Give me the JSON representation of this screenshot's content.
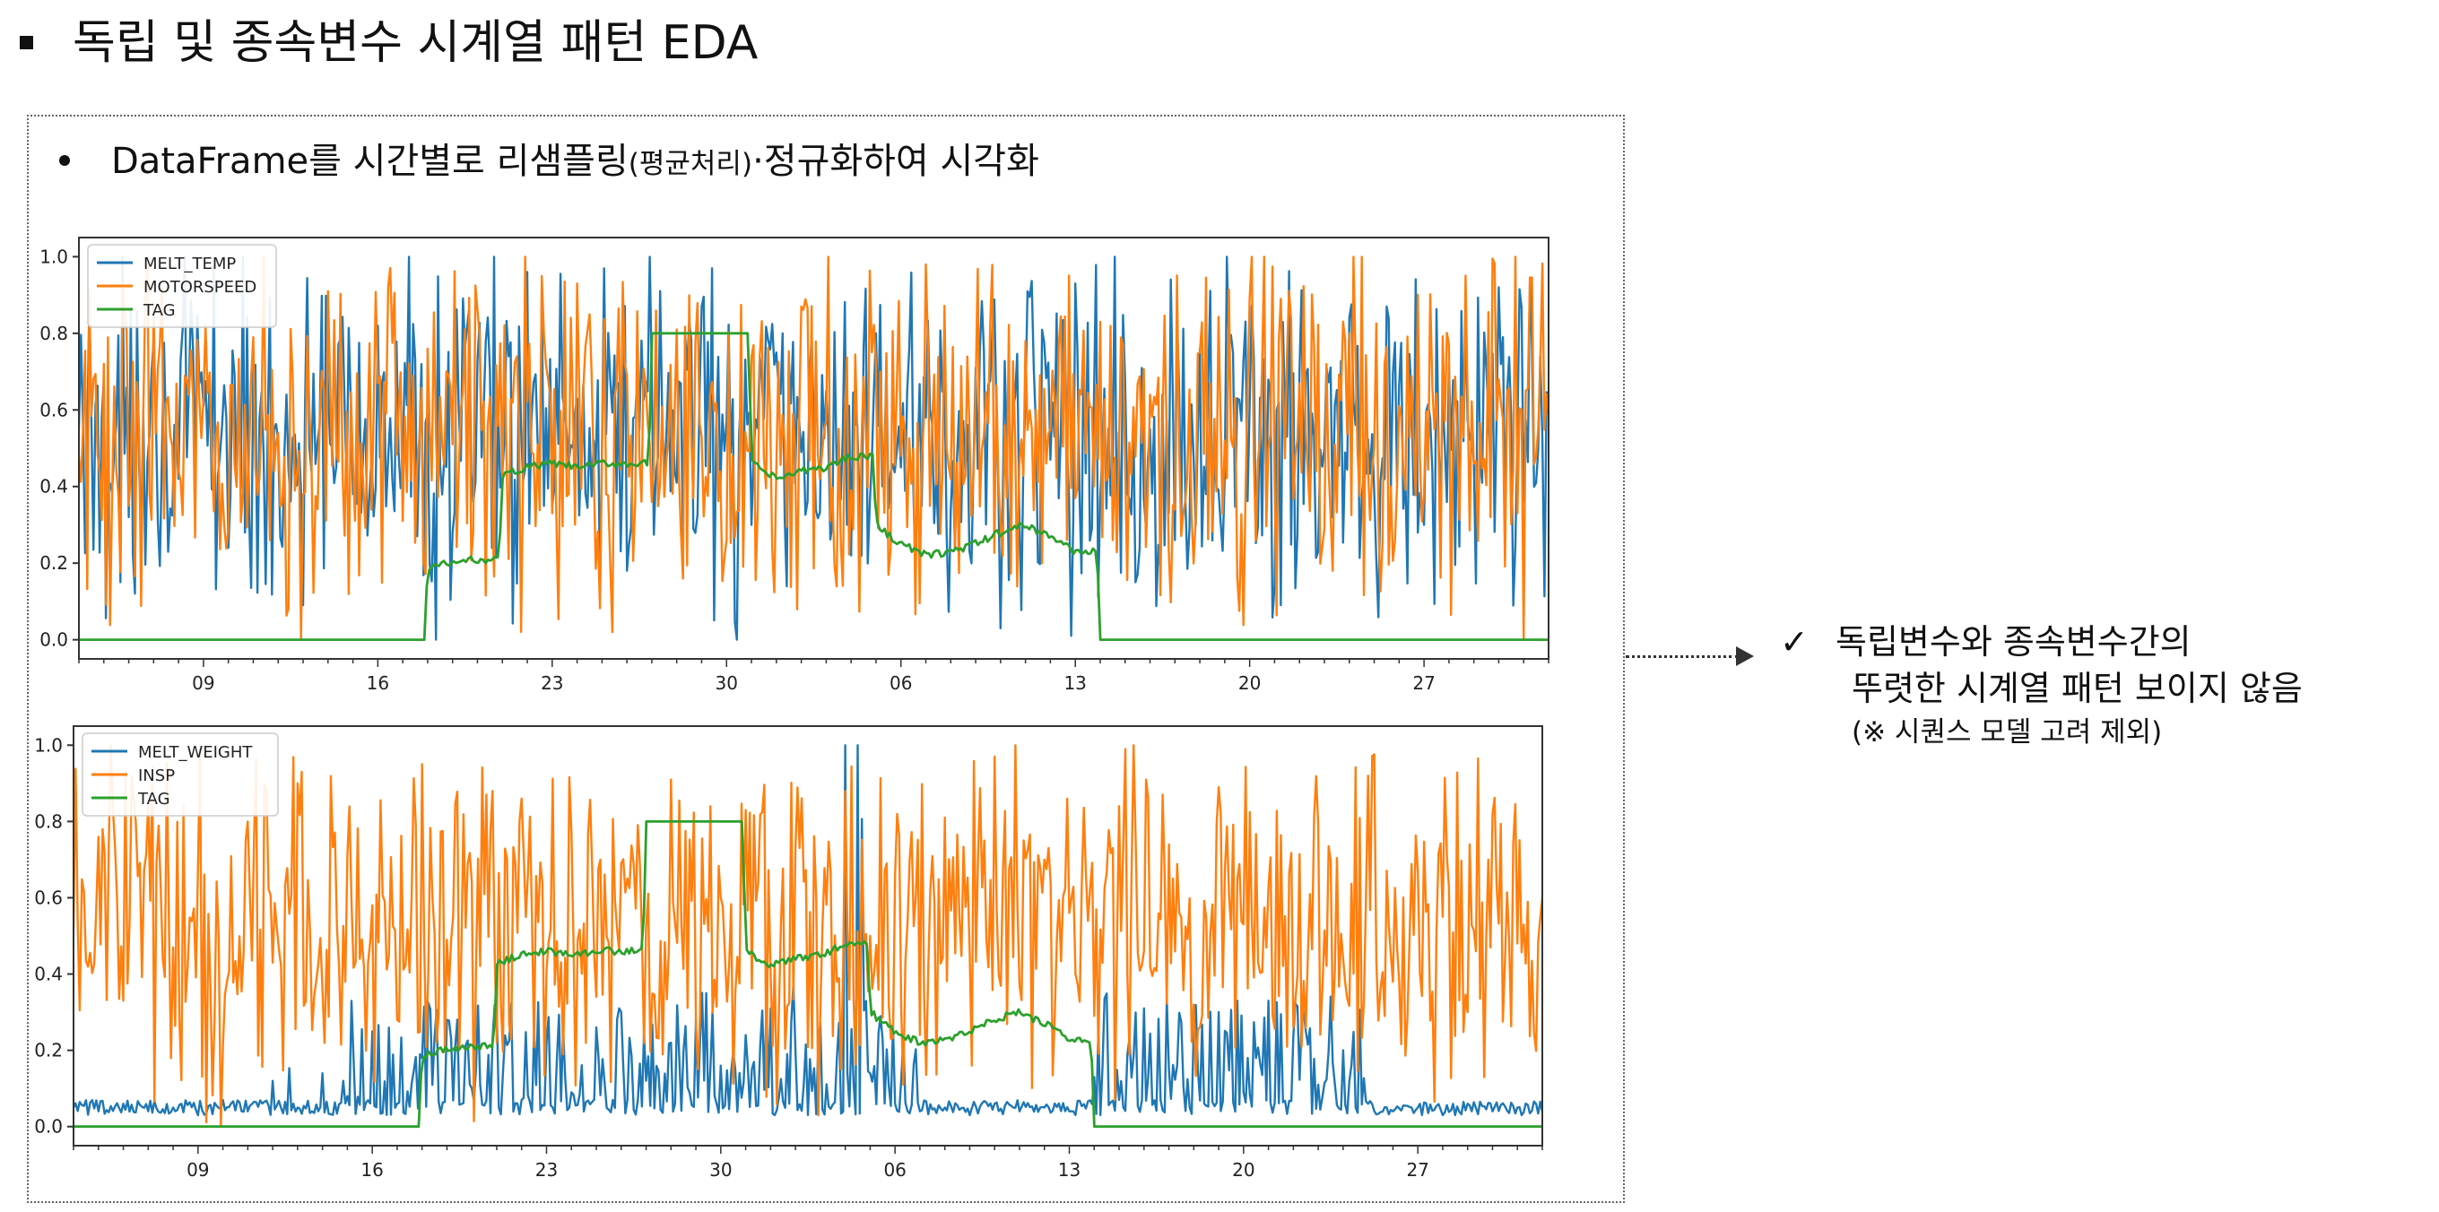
{
  "title": "독립 및 종속변수 시계열 패턴 EDA",
  "subtitle": {
    "main": "DataFrame를 시간별로 리샘플링",
    "paren": "(평균처리)",
    "tail": "·정규화하여 시각화"
  },
  "conclusion": {
    "check": "✓",
    "line1": "독립변수와 종속변수간의",
    "line2": "뚜렷한 시계열 패턴 보이지 않음",
    "line3": "(※ 시퀀스 모델 고려 제외)"
  },
  "colors": {
    "blue": "#1f77b4",
    "orange": "#ff7f0e",
    "green": "#2ca02c"
  },
  "chart_data": [
    {
      "type": "line",
      "title": "",
      "xlabel": "",
      "ylabel": "",
      "ylim": [
        -0.05,
        1.05
      ],
      "xlim": [
        0,
        59
      ],
      "x_ticks": [
        {
          "x": 5,
          "label": "09"
        },
        {
          "x": 12,
          "label": "16"
        },
        {
          "x": 19,
          "label": "23"
        },
        {
          "x": 26,
          "label": "30"
        },
        {
          "x": 33,
          "label": "06"
        },
        {
          "x": 40,
          "label": "13"
        },
        {
          "x": 47,
          "label": "20"
        },
        {
          "x": 54,
          "label": "27"
        }
      ],
      "y_ticks": [
        0.0,
        0.2,
        0.4,
        0.6,
        0.8,
        1.0
      ],
      "legend": "top-left",
      "grid": false,
      "series": [
        {
          "name": "MELT_TEMP",
          "color": "#1f77b4",
          "level": "mid",
          "values": [
            0.55,
            0.68,
            0.32,
            0.78,
            0.42,
            0.61,
            0.24,
            0.71,
            0.52,
            0.09,
            0.66,
            0.38,
            0.82,
            0.47,
            0.59,
            0.28,
            0.73,
            0.44,
            0.96,
            0.35,
            0.63,
            0.51,
            0.18,
            0.69,
            0.41,
            0.87,
            0.57,
            0.3,
            0.75,
            0.49,
            0.65,
            0.22,
            0.8,
            0.45,
            0.58,
            0.34,
            0.71,
            0.03,
            0.62,
            0.47,
            0.93,
            0.37,
            0.68,
            0.55,
            0.26,
            0.76,
            0.43,
            0.61,
            0.14,
            0.7,
            0.5,
            0.84,
            0.39,
            0.66,
            0.3,
            0.72,
            0.46,
            0.92,
            0.36,
            0.64
          ]
        },
        {
          "name": "MOTORSPEED",
          "color": "#ff7f0e",
          "level": "mid",
          "values": [
            0.48,
            0.72,
            0.35,
            0.88,
            0.44,
            0.63,
            0.29,
            0.79,
            0.54,
            0.38,
            0.91,
            0.46,
            0.67,
            0.31,
            0.76,
            0.51,
            0.86,
            0.41,
            0.62,
            0.33,
            0.93,
            0.49,
            0.69,
            0.36,
            0.81,
            0.53,
            0.26,
            0.74,
            0.45,
            0.87,
            0.57,
            0.39,
            0.72,
            0.48,
            0.98,
            0.42,
            0.66,
            0.31,
            0.78,
            0.55,
            0.37,
            0.83,
            0.47,
            0.64,
            0.34,
            0.75,
            0.52,
            0.89,
            0.43,
            0.67,
            0.29,
            0.8,
            0.5,
            0.61,
            0.38,
            0.77,
            0.46,
            0.68,
            0.0,
            0.59
          ]
        },
        {
          "name": "TAG",
          "color": "#2ca02c",
          "values": [
            0,
            0,
            0,
            0,
            0,
            0,
            0,
            0,
            0,
            0,
            0,
            0,
            0,
            0,
            0.19,
            0.2,
            0.21,
            0.43,
            0.45,
            0.46,
            0.45,
            0.46,
            0.46,
            0.8,
            0.8,
            0.8,
            0.8,
            0.46,
            0.42,
            0.44,
            0.45,
            0.48,
            0.3,
            0.25,
            0.22,
            0.23,
            0.25,
            0.28,
            0.3,
            0.27,
            0.23,
            0,
            0,
            0,
            0,
            0,
            0,
            0,
            0,
            0,
            0,
            0,
            0,
            0,
            0,
            0,
            0,
            0,
            0,
            0
          ]
        }
      ]
    },
    {
      "type": "line",
      "title": "",
      "xlabel": "",
      "ylabel": "",
      "ylim": [
        -0.05,
        1.05
      ],
      "xlim": [
        0,
        59
      ],
      "x_ticks": [
        {
          "x": 5,
          "label": "09"
        },
        {
          "x": 12,
          "label": "16"
        },
        {
          "x": 19,
          "label": "23"
        },
        {
          "x": 26,
          "label": "30"
        },
        {
          "x": 33,
          "label": "06"
        },
        {
          "x": 40,
          "label": "13"
        },
        {
          "x": 47,
          "label": "20"
        },
        {
          "x": 54,
          "label": "27"
        }
      ],
      "y_ticks": [
        0.0,
        0.2,
        0.4,
        0.6,
        0.8,
        1.0
      ],
      "legend": "top-left",
      "grid": false,
      "series": [
        {
          "name": "MELT_WEIGHT",
          "color": "#1f77b4",
          "level": "low",
          "values": [
            0.05,
            0.04,
            0.06,
            0.04,
            0.05,
            0.03,
            0.07,
            0.04,
            0.12,
            0.05,
            0.14,
            0.08,
            0.25,
            0.06,
            0.18,
            0.28,
            0.1,
            0.31,
            0.07,
            0.22,
            0.09,
            0.26,
            0.3,
            0.12,
            0.22,
            0.28,
            0.16,
            0.24,
            0.31,
            0.2,
            0.27,
            1.0,
            0.14,
            0.06,
            0.04,
            0.05,
            0.03,
            0.06,
            0.04,
            0.05,
            0.04,
            0.13,
            0.07,
            0.31,
            0.15,
            0.26,
            0.3,
            0.09,
            0.33,
            0.24,
            0.11,
            0.2,
            0.06,
            0.04,
            0.05,
            0.03,
            0.06,
            0.04,
            0.05,
            0.04
          ]
        },
        {
          "name": "INSP",
          "color": "#ff7f0e",
          "level": "mid",
          "values": [
            0.52,
            0.76,
            0.33,
            0.85,
            0.47,
            0.68,
            0.21,
            0.8,
            0.43,
            0.9,
            0.36,
            0.71,
            0.58,
            0.28,
            0.95,
            0.49,
            0.64,
            0.22,
            0.86,
            0.41,
            0.77,
            0.34,
            0.69,
            0.52,
            0.91,
            0.27,
            0.6,
            0.83,
            0.4,
            0.73,
            0.31,
            0.88,
            0.5,
            0.66,
            0.24,
            0.81,
            0.45,
            0.97,
            0.37,
            0.7,
            0.56,
            0.29,
            0.84,
            0.46,
            0.74,
            0.32,
            0.89,
            0.53,
            0.63,
            0.26,
            0.79,
            0.44,
            0.92,
            0.38,
            0.67,
            0.55,
            0.3,
            0.82,
            0.48,
            0.6
          ]
        },
        {
          "name": "TAG",
          "color": "#2ca02c",
          "values": [
            0,
            0,
            0,
            0,
            0,
            0,
            0,
            0,
            0,
            0,
            0,
            0,
            0,
            0,
            0.19,
            0.2,
            0.21,
            0.43,
            0.45,
            0.46,
            0.45,
            0.46,
            0.46,
            0.8,
            0.8,
            0.8,
            0.8,
            0.46,
            0.42,
            0.44,
            0.45,
            0.48,
            0.3,
            0.25,
            0.22,
            0.23,
            0.25,
            0.28,
            0.3,
            0.27,
            0.23,
            0,
            0,
            0,
            0,
            0,
            0,
            0,
            0,
            0,
            0,
            0,
            0,
            0,
            0,
            0,
            0,
            0,
            0,
            0
          ]
        }
      ]
    }
  ]
}
